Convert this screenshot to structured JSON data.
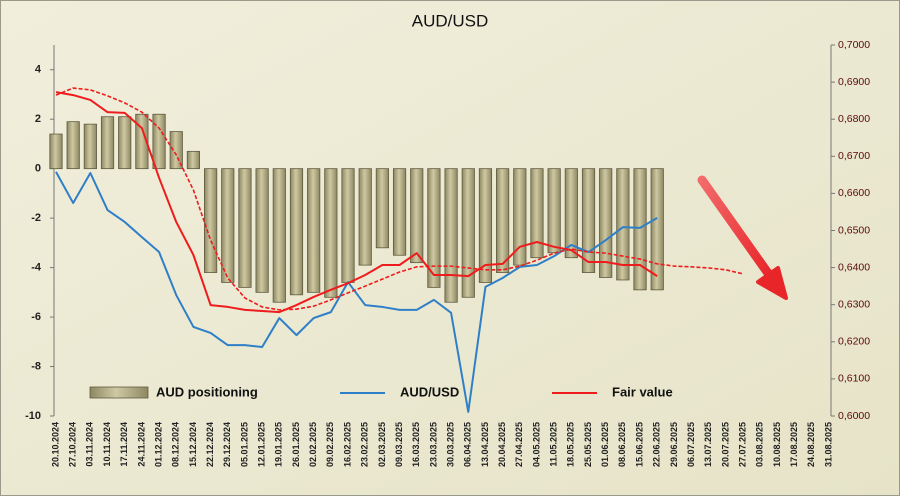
{
  "chart_data": {
    "type": "bar-line",
    "title": "AUD/USD",
    "categories": [
      "20.10.2024",
      "27.10.2024",
      "03.11.2024",
      "10.11.2024",
      "17.11.2024",
      "24.11.2024",
      "01.12.2024",
      "08.12.2024",
      "15.12.2024",
      "22.12.2024",
      "29.12.2024",
      "05.01.2025",
      "12.01.2025",
      "19.01.2025",
      "26.01.2025",
      "02.02.2025",
      "09.02.2025",
      "16.02.2025",
      "23.02.2025",
      "02.03.2025",
      "09.03.2025",
      "16.03.2025",
      "23.03.2025",
      "30.03.2025",
      "06.04.2025",
      "13.04.2025",
      "20.04.2025",
      "27.04.2025",
      "04.05.2025",
      "11.05.2025",
      "18.05.2025",
      "25.05.2025",
      "01.06.2025",
      "08.06.2025",
      "15.06.2025",
      "22.06.2025",
      "29.06.2025",
      "06.07.2025",
      "13.07.2025",
      "20.07.2025",
      "27.07.2025",
      "03.08.2025",
      "10.08.2025",
      "17.08.2025",
      "24.08.2025",
      "31.08.2025"
    ],
    "ylim": [
      -10,
      5
    ],
    "yticks": [
      -10,
      -8,
      -6,
      -4,
      -2,
      0,
      2,
      4
    ],
    "y2lim": [
      0.6,
      0.7
    ],
    "y2ticks": [
      {
        "value": 0.6,
        "label": "0,6000"
      },
      {
        "value": 0.61,
        "label": "0,6100"
      },
      {
        "value": 0.62,
        "label": "0,6200"
      },
      {
        "value": 0.63,
        "label": "0,6300"
      },
      {
        "value": 0.64,
        "label": "0,6400"
      },
      {
        "value": 0.65,
        "label": "0,6500"
      },
      {
        "value": 0.66,
        "label": "0,6600"
      },
      {
        "value": 0.67,
        "label": "0,6700"
      },
      {
        "value": 0.68,
        "label": "0,6800"
      },
      {
        "value": 0.69,
        "label": "0,6900"
      },
      {
        "value": 0.7,
        "label": "0,7000"
      }
    ],
    "series": [
      {
        "name": "AUD positioning",
        "kind": "bar",
        "color": "#b3ac82",
        "values": [
          1.4,
          1.9,
          1.8,
          2.1,
          2.1,
          2.2,
          2.2,
          1.5,
          0.7,
          -4.2,
          -4.6,
          -4.8,
          -5.0,
          -5.4,
          -5.1,
          -5.0,
          -5.2,
          -4.6,
          -3.9,
          -3.2,
          -3.5,
          -3.8,
          -4.8,
          -5.4,
          -5.2,
          -4.6,
          -4.2,
          -3.9,
          -3.6,
          -3.4,
          -3.6,
          -4.2,
          -4.4,
          -4.5,
          -4.9,
          -4.9,
          null,
          null,
          null,
          null,
          null,
          null,
          null,
          null,
          null,
          null
        ]
      },
      {
        "name": "AUD/USD",
        "kind": "line",
        "axis": "y2",
        "color": "#2f7fc8",
        "values": [
          0.6658,
          0.6574,
          0.6655,
          0.6555,
          0.6523,
          0.6482,
          0.6442,
          0.6326,
          0.624,
          0.6224,
          0.6191,
          0.6191,
          0.6186,
          0.6264,
          0.6218,
          0.6264,
          0.628,
          0.6361,
          0.6299,
          0.6294,
          0.6286,
          0.6286,
          0.6313,
          0.6278,
          0.6011,
          0.6348,
          0.6372,
          0.6402,
          0.6407,
          0.6431,
          0.6461,
          0.6442,
          0.6474,
          0.6509,
          0.6507,
          0.6534,
          null,
          null,
          null,
          null,
          null,
          null,
          null,
          null,
          null,
          null
        ]
      },
      {
        "name": "Fair value",
        "kind": "line",
        "axis": "y2",
        "color": "#ee1c1c",
        "values": [
          0.6873,
          0.6865,
          0.6852,
          0.6819,
          0.6817,
          0.6776,
          0.6642,
          0.6523,
          0.6434,
          0.6299,
          0.6294,
          0.6286,
          0.6283,
          0.628,
          0.6299,
          0.6321,
          0.634,
          0.6358,
          0.638,
          0.6407,
          0.6407,
          0.6439,
          0.638,
          0.638,
          0.6377,
          0.6407,
          0.641,
          0.6456,
          0.6469,
          0.6456,
          0.6447,
          0.6415,
          0.6415,
          0.6407,
          0.6407,
          0.6377,
          null,
          null,
          null,
          null,
          null,
          null,
          null,
          null,
          null,
          null
        ]
      },
      {
        "kind": "line",
        "axis": "y2",
        "dashed": true,
        "color": "#ee1c1c",
        "values": [
          0.6865,
          0.6884,
          0.6879,
          0.6863,
          0.6844,
          0.6819,
          0.6776,
          0.6704,
          0.6609,
          0.6474,
          0.6372,
          0.6318,
          0.6294,
          0.6286,
          0.6288,
          0.6296,
          0.6313,
          0.6332,
          0.635,
          0.6369,
          0.6388,
          0.6402,
          0.6404,
          0.6404,
          0.6399,
          0.6394,
          0.6394,
          0.6404,
          0.642,
          0.6439,
          0.645,
          0.6442,
          0.6439,
          0.6431,
          0.6423,
          0.641,
          0.6404,
          0.6402,
          0.6399,
          0.6394,
          0.6383,
          null,
          null,
          null,
          null,
          null
        ]
      }
    ]
  }
}
